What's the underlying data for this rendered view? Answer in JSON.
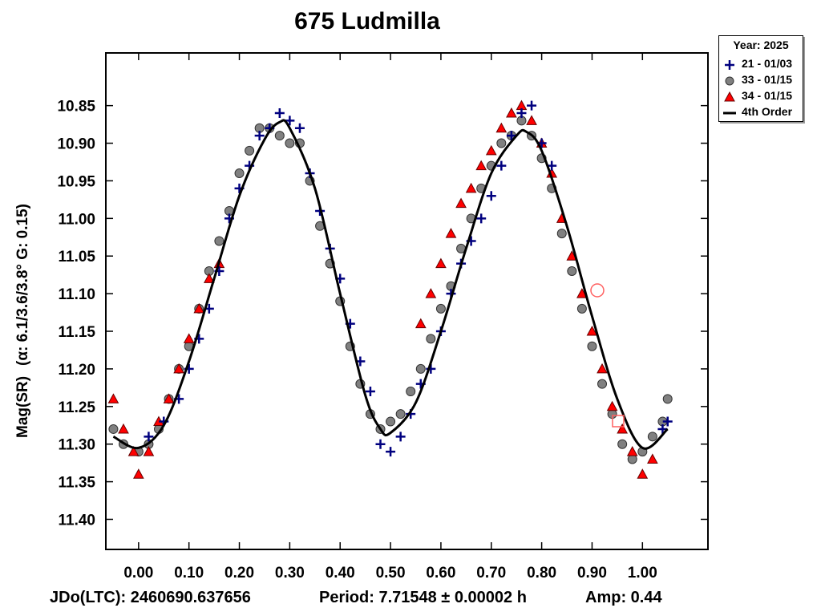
{
  "chart_data": {
    "type": "scatter",
    "title": "675 Ludmilla",
    "ylabel_main": "Mag(SR)",
    "ylabel_params": "(α: 6.1/3.6/3.8°  G: 0.15)",
    "xlabel": "",
    "x_tick_labels": [
      "0.00",
      "0.10",
      "0.20",
      "0.30",
      "0.40",
      "0.50",
      "0.60",
      "0.70",
      "0.80",
      "0.90",
      "1.00"
    ],
    "y_tick_labels": [
      "10.85",
      "10.90",
      "10.95",
      "11.00",
      "11.05",
      "11.10",
      "11.15",
      "11.20",
      "11.25",
      "11.30",
      "11.35",
      "11.40"
    ],
    "xlim": [
      -0.065,
      1.13
    ],
    "ylim": [
      11.44,
      10.78
    ],
    "y_inverted": true,
    "grid": false,
    "legend_position": "top-right-outside",
    "legend_title": "Year: 2025",
    "colors": {
      "series_21": "#00007f",
      "series_33": "#808080",
      "series_34": "#ff0000",
      "fit": "#000000"
    },
    "fit_curve": {
      "name": "4th Order",
      "x": [
        -0.05,
        0.0,
        0.05,
        0.1,
        0.15,
        0.2,
        0.25,
        0.28,
        0.3,
        0.35,
        0.4,
        0.45,
        0.48,
        0.5,
        0.55,
        0.6,
        0.65,
        0.7,
        0.75,
        0.77,
        0.8,
        0.85,
        0.9,
        0.95,
        1.0,
        1.05
      ],
      "y": [
        11.29,
        11.305,
        11.275,
        11.19,
        11.08,
        10.97,
        10.895,
        10.872,
        10.88,
        10.96,
        11.1,
        11.235,
        11.28,
        11.285,
        11.245,
        11.15,
        11.04,
        10.94,
        10.89,
        10.885,
        10.91,
        11.01,
        11.13,
        11.24,
        11.305,
        11.28
      ]
    },
    "series": [
      {
        "name": "21 - 01/03",
        "marker": "plus",
        "x": [
          0.02,
          0.05,
          0.08,
          0.1,
          0.12,
          0.14,
          0.16,
          0.18,
          0.2,
          0.22,
          0.24,
          0.26,
          0.28,
          0.3,
          0.32,
          0.34,
          0.36,
          0.38,
          0.4,
          0.42,
          0.44,
          0.46,
          0.48,
          0.5,
          0.52,
          0.54,
          0.56,
          0.58,
          0.6,
          0.62,
          0.64,
          0.66,
          0.68,
          0.7,
          0.72,
          0.74,
          0.76,
          0.78,
          0.8,
          0.82,
          1.04,
          1.05
        ],
        "y": [
          11.29,
          11.27,
          11.24,
          11.2,
          11.16,
          11.12,
          11.07,
          11.0,
          10.96,
          10.93,
          10.89,
          10.88,
          10.86,
          10.87,
          10.88,
          10.94,
          10.99,
          11.04,
          11.08,
          11.14,
          11.19,
          11.23,
          11.3,
          11.31,
          11.29,
          11.26,
          11.22,
          11.2,
          11.15,
          11.1,
          11.06,
          11.03,
          11.0,
          10.97,
          10.93,
          10.89,
          10.86,
          10.85,
          10.9,
          10.93,
          11.28,
          11.27
        ]
      },
      {
        "name": "33 - 01/15",
        "marker": "circle",
        "x": [
          -0.05,
          -0.03,
          0.0,
          0.02,
          0.04,
          0.06,
          0.08,
          0.1,
          0.12,
          0.14,
          0.16,
          0.18,
          0.2,
          0.22,
          0.24,
          0.26,
          0.28,
          0.3,
          0.32,
          0.34,
          0.36,
          0.38,
          0.4,
          0.42,
          0.44,
          0.46,
          0.48,
          0.5,
          0.52,
          0.54,
          0.56,
          0.58,
          0.6,
          0.62,
          0.64,
          0.66,
          0.68,
          0.7,
          0.72,
          0.74,
          0.76,
          0.78,
          0.8,
          0.82,
          0.84,
          0.86,
          0.88,
          0.9,
          0.92,
          0.94,
          0.96,
          0.98,
          1.0,
          1.02,
          1.04,
          1.05
        ],
        "y": [
          11.28,
          11.3,
          11.31,
          11.3,
          11.28,
          11.24,
          11.2,
          11.17,
          11.12,
          11.07,
          11.03,
          10.99,
          10.94,
          10.91,
          10.88,
          10.88,
          10.89,
          10.9,
          10.9,
          10.95,
          11.01,
          11.06,
          11.11,
          11.17,
          11.22,
          11.26,
          11.28,
          11.27,
          11.26,
          11.23,
          11.2,
          11.16,
          11.12,
          11.09,
          11.04,
          11.0,
          10.96,
          10.93,
          10.9,
          10.89,
          10.87,
          10.89,
          10.92,
          10.96,
          11.02,
          11.07,
          11.12,
          11.17,
          11.22,
          11.26,
          11.3,
          11.32,
          11.31,
          11.29,
          11.27,
          11.24
        ]
      },
      {
        "name": "34 - 01/15",
        "marker": "triangle",
        "x": [
          -0.05,
          -0.03,
          -0.01,
          0.0,
          0.02,
          0.04,
          0.06,
          0.08,
          0.1,
          0.12,
          0.14,
          0.16,
          0.56,
          0.58,
          0.6,
          0.62,
          0.64,
          0.66,
          0.68,
          0.7,
          0.72,
          0.74,
          0.76,
          0.78,
          0.8,
          0.82,
          0.84,
          0.86,
          0.88,
          0.9,
          0.92,
          0.94,
          0.96,
          0.98,
          1.0,
          1.02
        ],
        "y": [
          11.24,
          11.28,
          11.31,
          11.34,
          11.31,
          11.27,
          11.24,
          11.2,
          11.16,
          11.12,
          11.08,
          11.06,
          11.14,
          11.1,
          11.06,
          11.02,
          10.98,
          10.96,
          10.93,
          10.91,
          10.88,
          10.86,
          10.85,
          10.87,
          10.9,
          10.94,
          11.0,
          11.05,
          11.1,
          11.15,
          11.2,
          11.25,
          11.28,
          11.31,
          11.34,
          11.32
        ]
      }
    ]
  },
  "legend": {
    "title": "Year: 2025",
    "items": [
      {
        "label": "21 - 01/03"
      },
      {
        "label": "33 - 01/15"
      },
      {
        "label": "34 - 01/15"
      },
      {
        "label": "4th Order"
      }
    ]
  },
  "footer": {
    "jd": "JDo(LTC): 2460690.637656",
    "period": "Period: 7.71548 ± 0.00002 h",
    "amp": "Amp: 0.44"
  }
}
